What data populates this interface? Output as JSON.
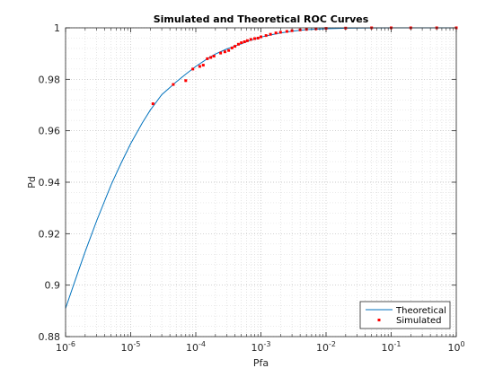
{
  "chart_data": {
    "type": "line",
    "title": "Simulated and Theoretical ROC Curves",
    "xlabel": "Pfa",
    "ylabel": "Pd",
    "xscale": "log",
    "xlim": [
      1e-06,
      1
    ],
    "ylim": [
      0.88,
      1
    ],
    "x_ticks": [
      {
        "value": 1e-06,
        "base": "10",
        "exp": "-6"
      },
      {
        "value": 1e-05,
        "base": "10",
        "exp": "-5"
      },
      {
        "value": 0.0001,
        "base": "10",
        "exp": "-4"
      },
      {
        "value": 0.001,
        "base": "10",
        "exp": "-3"
      },
      {
        "value": 0.01,
        "base": "10",
        "exp": "-2"
      },
      {
        "value": 0.1,
        "base": "10",
        "exp": "-1"
      },
      {
        "value": 1,
        "base": "10",
        "exp": "0"
      }
    ],
    "y_ticks": [
      {
        "value": 0.88,
        "label": "0.88"
      },
      {
        "value": 0.9,
        "label": "0.9"
      },
      {
        "value": 0.92,
        "label": "0.92"
      },
      {
        "value": 0.94,
        "label": "0.94"
      },
      {
        "value": 0.96,
        "label": "0.96"
      },
      {
        "value": 0.98,
        "label": "0.98"
      },
      {
        "value": 1,
        "label": "1"
      }
    ],
    "grid": "major and minor, dotted",
    "legend_position": "bottom-right",
    "series": [
      {
        "name": "Theoretical",
        "style": "line",
        "color": "#0072bd",
        "x": [
          1e-06,
          1.5e-06,
          2e-06,
          3e-06,
          5e-06,
          7e-06,
          1e-05,
          1.5e-05,
          2e-05,
          3e-05,
          5e-05,
          7e-05,
          0.0001,
          0.00015,
          0.0002,
          0.0003,
          0.0005,
          0.0007,
          0.001,
          0.0015,
          0.002,
          0.003,
          0.005,
          0.01,
          0.02,
          0.05,
          0.1,
          0.2,
          0.5,
          1
        ],
        "y": [
          0.891,
          0.904,
          0.913,
          0.925,
          0.939,
          0.947,
          0.955,
          0.963,
          0.968,
          0.974,
          0.979,
          0.982,
          0.985,
          0.988,
          0.9898,
          0.9918,
          0.9938,
          0.9952,
          0.9964,
          0.9974,
          0.998,
          0.9987,
          0.9993,
          0.99965,
          0.99985,
          0.99996,
          0.99999,
          1,
          1,
          1
        ]
      },
      {
        "name": "Simulated",
        "style": "markers",
        "color": "#ff0000",
        "x": [
          2.2e-05,
          4.5e-05,
          7e-05,
          9e-05,
          0.000115,
          0.00013,
          0.00015,
          0.00017,
          0.00019,
          0.00024,
          0.00028,
          0.00032,
          0.00036,
          0.0004,
          0.00045,
          0.0005,
          0.00056,
          0.00062,
          0.0007,
          0.0008,
          0.0009,
          0.001,
          0.0012,
          0.0014,
          0.0017,
          0.002,
          0.0025,
          0.003,
          0.004,
          0.005,
          0.007,
          0.01,
          0.02,
          0.05,
          0.1,
          0.2,
          0.5,
          1
        ],
        "y": [
          0.9705,
          0.978,
          0.9795,
          0.984,
          0.985,
          0.9855,
          0.988,
          0.9885,
          0.989,
          0.9902,
          0.9907,
          0.9912,
          0.9922,
          0.9928,
          0.9936,
          0.9942,
          0.9946,
          0.995,
          0.9955,
          0.9958,
          0.996,
          0.9965,
          0.997,
          0.9975,
          0.998,
          0.9983,
          0.9986,
          0.9989,
          0.9992,
          0.9994,
          0.9996,
          0.9998,
          0.9999,
          1,
          1,
          1,
          1,
          1
        ]
      }
    ]
  }
}
